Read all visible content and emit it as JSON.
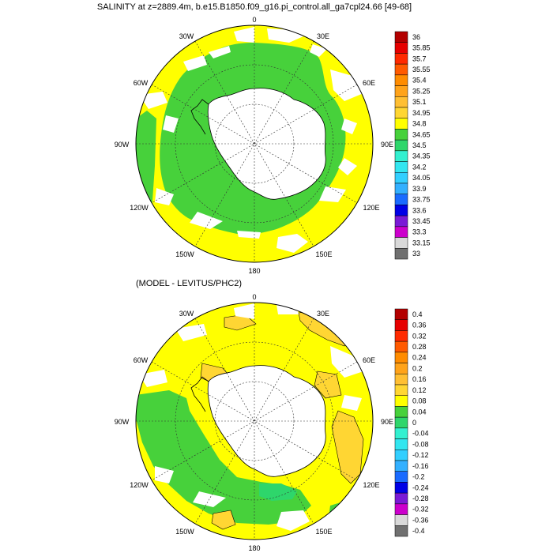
{
  "panels": [
    {
      "title": "SALINITY at z=2889.4m, b.e15.B1850.f09_g16.pi_control.all_ga7cpl24.66 [49-68]",
      "lon_labels": [
        "0",
        "30E",
        "60E",
        "90E",
        "120E",
        "150E",
        "180",
        "150W",
        "120W",
        "90W",
        "60W",
        "30W"
      ],
      "colorbar": {
        "labels": [
          "36",
          "35.85",
          "35.7",
          "35.55",
          "35.4",
          "35.25",
          "35.1",
          "34.95",
          "34.8",
          "34.65",
          "34.5",
          "34.35",
          "34.2",
          "34.05",
          "33.9",
          "33.75",
          "33.6",
          "33.45",
          "33.3",
          "33.15",
          "33"
        ],
        "colors": [
          "#b30000",
          "#e60000",
          "#ff2a00",
          "#ff5a00",
          "#ff8c00",
          "#ffa31a",
          "#ffbf33",
          "#ffd633",
          "#ffff00",
          "#47d13b",
          "#2ed66b",
          "#33f0d0",
          "#33e6f0",
          "#33cfff",
          "#33b0ff",
          "#1a6bff",
          "#0000e6",
          "#7a1ad6",
          "#cc00cc",
          "#d9d9d9",
          "#707070"
        ]
      }
    },
    {
      "title": "(MODEL - LEVITUS/PHC2)",
      "lon_labels": [
        "0",
        "30E",
        "60E",
        "90E",
        "120E",
        "150E",
        "180",
        "150W",
        "120W",
        "90W",
        "60W",
        "30W"
      ],
      "colorbar": {
        "labels": [
          "0.4",
          "0.36",
          "0.32",
          "0.28",
          "0.24",
          "0.2",
          "0.16",
          "0.12",
          "0.08",
          "0.04",
          "0",
          "-0.04",
          "-0.08",
          "-0.12",
          "-0.16",
          "-0.2",
          "-0.24",
          "-0.28",
          "-0.32",
          "-0.36",
          "-0.4"
        ],
        "colors": [
          "#b30000",
          "#e60000",
          "#ff2a00",
          "#ff5a00",
          "#ff8c00",
          "#ffa31a",
          "#ffbf33",
          "#ffd633",
          "#ffff00",
          "#47d13b",
          "#2ed66b",
          "#33f0d0",
          "#33e6f0",
          "#33cfff",
          "#33b0ff",
          "#1a6bff",
          "#0000e6",
          "#7a1ad6",
          "#cc00cc",
          "#d9d9d9",
          "#707070"
        ]
      }
    }
  ]
}
